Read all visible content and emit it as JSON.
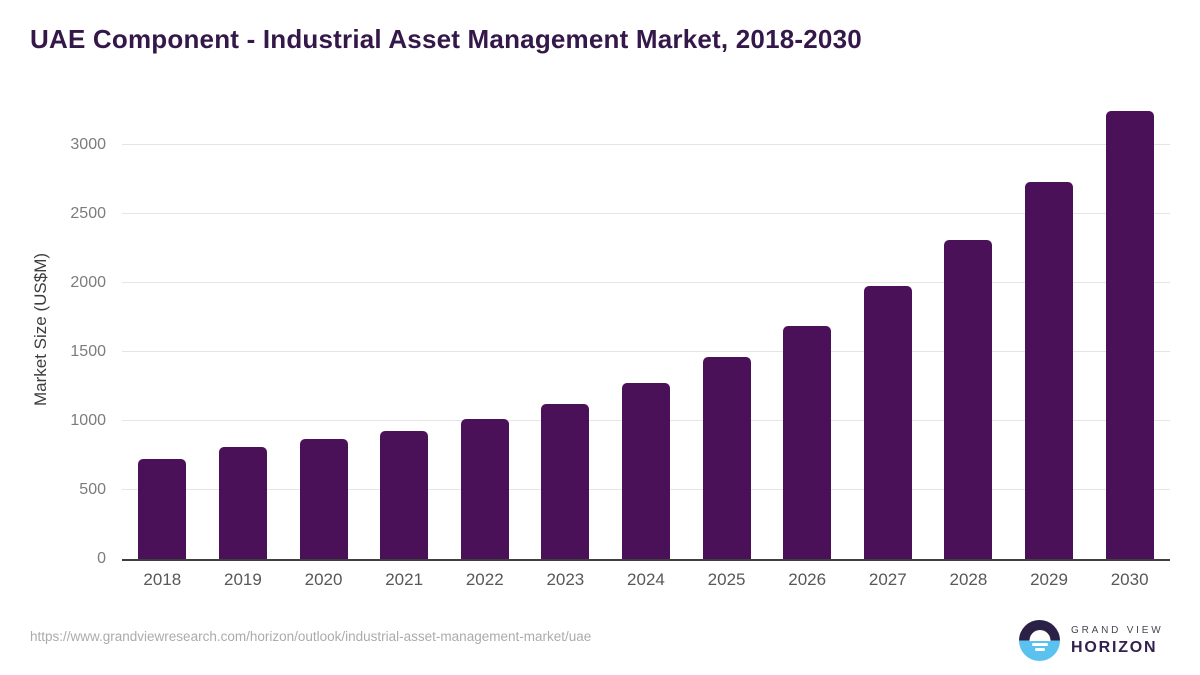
{
  "page": {
    "title": "UAE Component - Industrial Asset Management Market, 2018-2030",
    "source_url": "https://www.grandviewresearch.com/horizon/outlook/industrial-asset-management-market/uae"
  },
  "logo": {
    "brand_top": "GRAND VIEW",
    "brand_bottom": "HORIZON"
  },
  "colors": {
    "bar": "#4a1158",
    "title_text": "#35184a",
    "gridline": "#e5e5e5",
    "axis_line": "#3f3f3f",
    "y_tick_text": "#7c7c7c",
    "x_label_text": "#57585a",
    "y_axis_title_text": "#3d3d3d",
    "url_text": "#ababab",
    "logo_purple": "#2b2045",
    "logo_blue": "#5bc2f0"
  },
  "chart_data": {
    "type": "bar",
    "title": "UAE Component - Industrial Asset Management Market, 2018-2030",
    "categories": [
      "2018",
      "2019",
      "2020",
      "2021",
      "2022",
      "2023",
      "2024",
      "2025",
      "2026",
      "2027",
      "2028",
      "2029",
      "2030"
    ],
    "values": [
      725,
      810,
      870,
      930,
      1015,
      1125,
      1275,
      1465,
      1690,
      1975,
      2315,
      2730,
      3245
    ],
    "xlabel": "",
    "ylabel": "Market Size (US$M)",
    "unit": "US$M",
    "ylim": [
      0,
      3250
    ],
    "yticks": [
      0,
      500,
      1000,
      1500,
      2000,
      2500,
      3000
    ],
    "grid": "horizontal-only",
    "legend": false,
    "bar_color": "#4a1158"
  }
}
